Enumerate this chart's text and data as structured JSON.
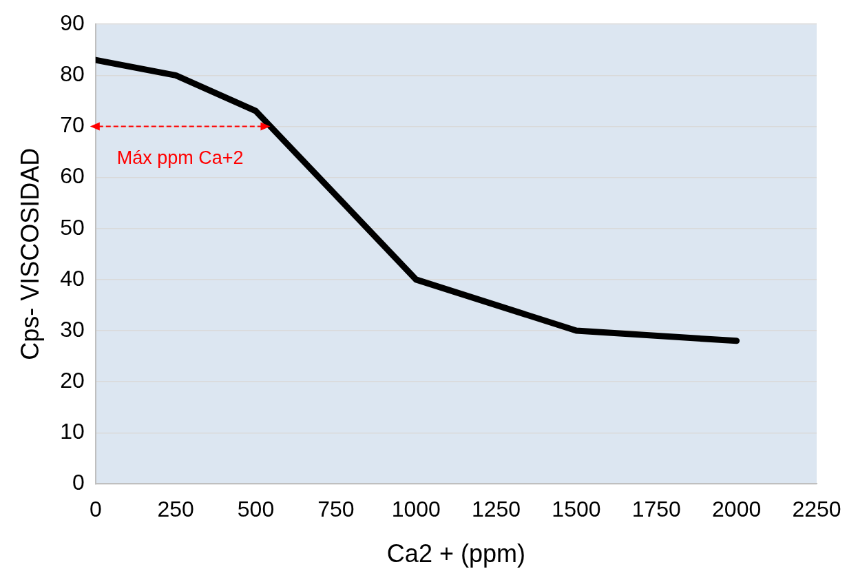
{
  "chart_data": {
    "type": "line",
    "xlabel": "Ca2 + (ppm)",
    "ylabel": "Cps- VISCOSIDAD",
    "x": [
      0,
      250,
      500,
      1000,
      1500,
      2000
    ],
    "series": [
      {
        "color": "#000000",
        "values": [
          83,
          80,
          73,
          40,
          30,
          28
        ]
      }
    ],
    "xlim": [
      0,
      2250
    ],
    "xticks": [
      0,
      250,
      500,
      750,
      1000,
      1250,
      1500,
      1750,
      2000,
      2250
    ],
    "ylim": [
      0,
      90
    ],
    "yticks": [
      0,
      10,
      20,
      30,
      40,
      50,
      60,
      70,
      80,
      90
    ],
    "grid": "y",
    "legend": false,
    "marker": "none",
    "line_style": "solid",
    "annotations": [
      {
        "text": "Máx ppm Ca+2",
        "x": 545,
        "y": 70
      }
    ]
  }
}
